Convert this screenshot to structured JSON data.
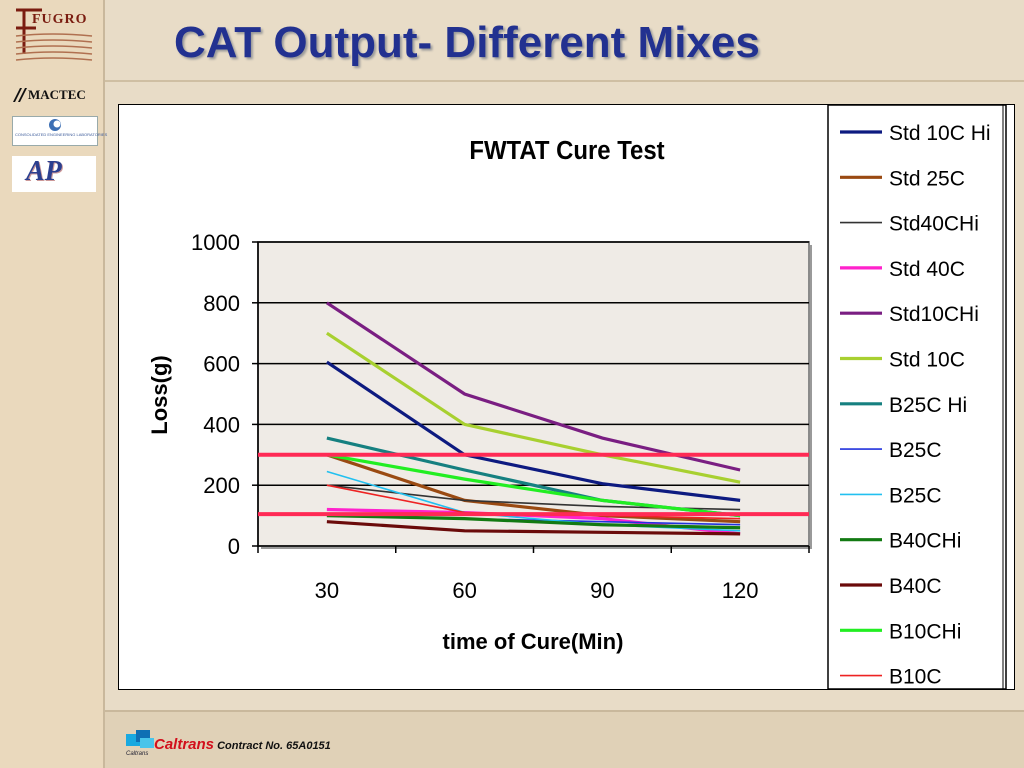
{
  "slide": {
    "title": "CAT Output- Different Mixes",
    "footer_org": "Caltrans",
    "footer_contract": " Contract No. 65A0151",
    "footer_small": "Caltrans"
  },
  "logos": {
    "fugro": "FUGRO",
    "mactec": "MACTEC",
    "consolidated": "CONSOLIDATED ENGINEERING LABORATORIES",
    "ap": "AP"
  },
  "chart_data": {
    "type": "line",
    "title": "FWTAT Cure Test",
    "xlabel": "time of Cure(Min)",
    "ylabel": "Loss(g)",
    "categories": [
      "30",
      "60",
      "90",
      "120"
    ],
    "ylim": [
      0,
      1000
    ],
    "yticks": [
      0,
      200,
      400,
      600,
      800,
      1000
    ],
    "grid": true,
    "legend": "right",
    "series": [
      {
        "name": "Std 10C Hi",
        "color": "#0d1a80",
        "values": [
          605,
          300,
          205,
          150
        ]
      },
      {
        "name": "Std 25C",
        "color": "#9a4a12",
        "values": [
          300,
          150,
          100,
          80
        ]
      },
      {
        "name": "Std40CHi",
        "color": "#333333",
        "values": [
          200,
          150,
          130,
          120
        ]
      },
      {
        "name": "Std 40C",
        "color": "#ff22cc",
        "values": [
          120,
          110,
          90,
          40
        ]
      },
      {
        "name": "Std10CHi",
        "color": "#7a1e82",
        "values": [
          800,
          500,
          355,
          250
        ]
      },
      {
        "name": "Std 10C",
        "color": "#a8d030",
        "values": [
          700,
          400,
          300,
          210
        ]
      },
      {
        "name": "B25C Hi",
        "color": "#168080",
        "values": [
          355,
          250,
          150,
          100
        ]
      },
      {
        "name": "B25C",
        "color": "#2233dd",
        "values": [
          100,
          90,
          80,
          70
        ]
      },
      {
        "name": "B25C",
        "color": "#22c0f0",
        "values": [
          245,
          110,
          70,
          50
        ]
      },
      {
        "name": "B40CHi",
        "color": "#127a12",
        "values": [
          100,
          90,
          70,
          60
        ]
      },
      {
        "name": "B40C",
        "color": "#6a0a0a",
        "values": [
          80,
          50,
          45,
          40
        ]
      },
      {
        "name": "B10CHi",
        "color": "#22ee22",
        "values": [
          300,
          220,
          150,
          100
        ]
      },
      {
        "name": "B10C",
        "color": "#ee2222",
        "values": [
          200,
          110,
          100,
          90
        ]
      }
    ],
    "reference_lines": [
      {
        "value": 300,
        "color": "#ff2a55"
      },
      {
        "value": 105,
        "color": "#ff2a55"
      }
    ]
  }
}
